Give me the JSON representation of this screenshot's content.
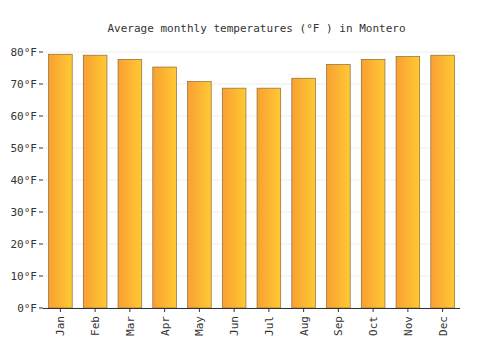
{
  "chart_data": {
    "type": "bar",
    "title": "Average monthly temperatures (°F ) in Montero",
    "categories": [
      "Jan",
      "Feb",
      "Mar",
      "Apr",
      "May",
      "Jun",
      "Jul",
      "Aug",
      "Sep",
      "Oct",
      "Nov",
      "Dec"
    ],
    "values": [
      79.3,
      79.0,
      77.7,
      75.3,
      70.8,
      68.7,
      68.7,
      71.8,
      76.1,
      77.7,
      78.6,
      79.0
    ],
    "color": "#f9a032",
    "ylim": [
      0,
      80
    ],
    "yticks": [
      {
        "value": 0,
        "label": "0°F"
      },
      {
        "value": 10,
        "label": "10°F"
      },
      {
        "value": 20,
        "label": "20°F"
      },
      {
        "value": 30,
        "label": "30°F"
      },
      {
        "value": 40,
        "label": "40°F"
      },
      {
        "value": 50,
        "label": "50°F"
      },
      {
        "value": 60,
        "label": "60°F"
      },
      {
        "value": 70,
        "label": "70°F"
      },
      {
        "value": 80,
        "label": "80°F"
      }
    ],
    "grid": true
  }
}
